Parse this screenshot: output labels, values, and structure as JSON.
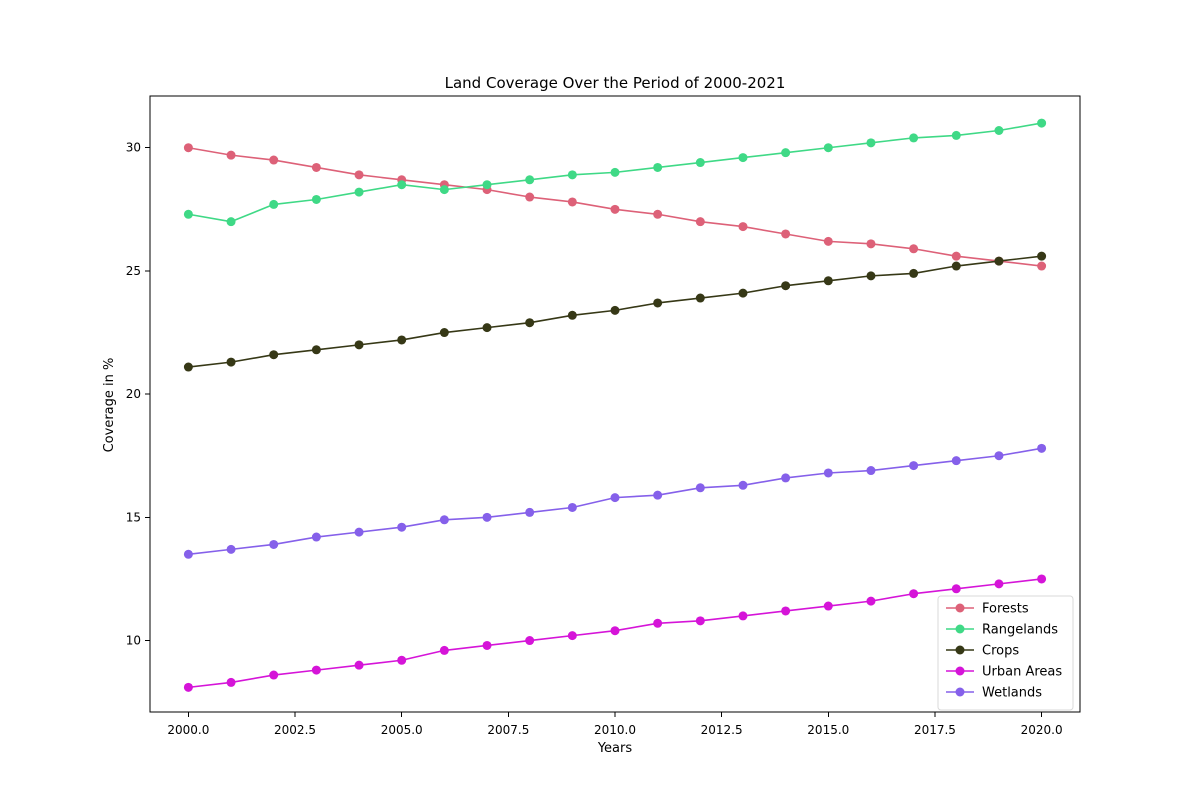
{
  "chart_data": {
    "type": "line",
    "title": "Land Coverage Over the Period of 2000-2021",
    "xlabel": "Years",
    "ylabel": "Coverage in %",
    "x": [
      2000,
      2001,
      2002,
      2003,
      2004,
      2005,
      2006,
      2007,
      2008,
      2009,
      2010,
      2011,
      2012,
      2013,
      2014,
      2015,
      2016,
      2017,
      2018,
      2019,
      2020
    ],
    "xlim": [
      1999.1,
      2020.9
    ],
    "ylim": [
      7.1,
      32.1
    ],
    "x_ticks": [
      "2000.0",
      "2002.5",
      "2005.0",
      "2007.5",
      "2010.0",
      "2012.5",
      "2015.0",
      "2017.5",
      "2020.0"
    ],
    "y_ticks": [
      "10",
      "15",
      "20",
      "25",
      "30"
    ],
    "grid": false,
    "legend_position": "bottom-right",
    "series": [
      {
        "name": "Forests",
        "color": "#dd6178",
        "values": [
          30.0,
          29.7,
          29.5,
          29.2,
          28.9,
          28.7,
          28.5,
          28.3,
          28.0,
          27.8,
          27.5,
          27.3,
          27.0,
          26.8,
          26.5,
          26.2,
          26.1,
          25.9,
          25.6,
          25.4,
          25.2
        ]
      },
      {
        "name": "Rangelands",
        "color": "#3fd986",
        "values": [
          27.3,
          27.0,
          27.7,
          27.9,
          28.2,
          28.5,
          28.3,
          28.5,
          28.7,
          28.9,
          29.0,
          29.2,
          29.4,
          29.6,
          29.8,
          30.0,
          30.2,
          30.4,
          30.5,
          30.7,
          31.0
        ]
      },
      {
        "name": "Crops",
        "color": "#363816",
        "values": [
          21.1,
          21.3,
          21.6,
          21.8,
          22.0,
          22.2,
          22.5,
          22.7,
          22.9,
          23.2,
          23.4,
          23.7,
          23.9,
          24.1,
          24.4,
          24.6,
          24.8,
          24.9,
          25.2,
          25.4,
          25.6
        ]
      },
      {
        "name": "Urban Areas",
        "color": "#d514d8",
        "values": [
          8.1,
          8.3,
          8.6,
          8.8,
          9.0,
          9.2,
          9.6,
          9.8,
          10.0,
          10.2,
          10.4,
          10.7,
          10.8,
          11.0,
          11.2,
          11.4,
          11.6,
          11.9,
          12.1,
          12.3,
          12.5
        ]
      },
      {
        "name": "Wetlands",
        "color": "#8560ea",
        "values": [
          13.5,
          13.7,
          13.9,
          14.2,
          14.4,
          14.6,
          14.9,
          15.0,
          15.2,
          15.4,
          15.8,
          15.9,
          16.2,
          16.3,
          16.6,
          16.8,
          16.9,
          17.1,
          17.3,
          17.5,
          17.8
        ]
      }
    ]
  }
}
